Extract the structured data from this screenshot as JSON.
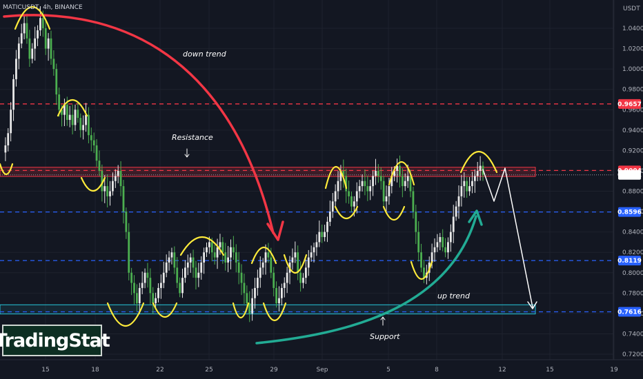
{
  "symbol_label": "MATICUSDT, 4h, BINANCE",
  "currency_label": "USDT",
  "watermark": "TradingStat",
  "colors": {
    "background": "#131722",
    "up_candle": "#e8e8e8",
    "down_candle": "#4caf50",
    "resistance_red": "#f23645",
    "support_cyan": "#26c6da",
    "blue_dash": "#2962ff",
    "curve_red": "#f23645",
    "curve_green": "#22ab94",
    "yellow_marks": "#ffeb3b"
  },
  "annotations": {
    "down_trend": "down trend",
    "up_trend": "up trend",
    "resistance": "Resistance",
    "support": "Support"
  },
  "chart_data": {
    "type": "candlestick",
    "ylim": [
      0.711,
      1.058
    ],
    "y_ticks": [
      1.04,
      1.02,
      1.0,
      0.98,
      0.96,
      0.94,
      0.92,
      0.9,
      0.88,
      0.86,
      0.84,
      0.82,
      0.8,
      0.78,
      0.76,
      0.74,
      0.72
    ],
    "y_tick_labels": [
      "1.0400",
      "1.0200",
      "1.0000",
      "0.9800",
      "0.9600",
      "0.9400",
      "0.9200",
      "0.9000",
      "0.8800",
      "0.8600",
      "0.8400",
      "0.8200",
      "0.8000",
      "0.7800",
      "0.7600",
      "0.7400",
      "0.7200"
    ],
    "x_ticks": [
      "15",
      "18",
      "22",
      "25",
      "29",
      "Sep",
      "5",
      "8",
      "12",
      "15",
      "19"
    ],
    "levels": [
      {
        "name": "resistance-upper",
        "value": 0.9657,
        "label": "0.9657",
        "style": "dashed",
        "color": "#f23645"
      },
      {
        "name": "resistance-zone-top",
        "value": 0.9004,
        "label": "0.9004",
        "style": "dashed",
        "color": "#f23645"
      },
      {
        "name": "current-price",
        "value": 0.8961,
        "label": "0.8961",
        "style": "dotted",
        "color": "#787b86"
      },
      {
        "name": "level-blue-1",
        "value": 0.8596,
        "label": "0.8596",
        "style": "dashed",
        "color": "#2962ff"
      },
      {
        "name": "level-blue-2",
        "value": 0.8119,
        "label": "0.8119",
        "style": "dashed",
        "color": "#2962ff"
      },
      {
        "name": "support",
        "value": 0.7616,
        "label": "0.7616",
        "style": "dashed",
        "color": "#2962ff"
      }
    ],
    "resistance_zone": [
      0.8945,
      0.9035
    ],
    "support_zone": [
      0.7595,
      0.7685
    ],
    "path_points": [
      0.918,
      0.925,
      0.937,
      0.96,
      0.99,
      1.01,
      1.025,
      1.035,
      1.045,
      1.03,
      1.01,
      1.02,
      1.03,
      1.038,
      1.05,
      1.04,
      1.02,
      1.03,
      1.01,
      1.0,
      0.975,
      0.96,
      0.955,
      0.965,
      0.95,
      0.955,
      0.945,
      0.96,
      0.952,
      0.94,
      0.945,
      0.955,
      0.935,
      0.93,
      0.925,
      0.91,
      0.9,
      0.88,
      0.885,
      0.875,
      0.88,
      0.89,
      0.895,
      0.9,
      0.885,
      0.86,
      0.84,
      0.8,
      0.79,
      0.78,
      0.77,
      0.785,
      0.79,
      0.8,
      0.795,
      0.78,
      0.77,
      0.775,
      0.785,
      0.79,
      0.8,
      0.81,
      0.815,
      0.82,
      0.805,
      0.79,
      0.78,
      0.795,
      0.805,
      0.81,
      0.815,
      0.805,
      0.795,
      0.8,
      0.81,
      0.82,
      0.825,
      0.83,
      0.82,
      0.815,
      0.825,
      0.83,
      0.82,
      0.81,
      0.815,
      0.825,
      0.82,
      0.81,
      0.8,
      0.79,
      0.78,
      0.77,
      0.76,
      0.775,
      0.785,
      0.795,
      0.805,
      0.81,
      0.82,
      0.815,
      0.8,
      0.785,
      0.77,
      0.775,
      0.785,
      0.79,
      0.8,
      0.81,
      0.815,
      0.82,
      0.8,
      0.79,
      0.795,
      0.805,
      0.815,
      0.82,
      0.825,
      0.83,
      0.84,
      0.835,
      0.84,
      0.85,
      0.86,
      0.87,
      0.88,
      0.89,
      0.9,
      0.895,
      0.88,
      0.875,
      0.865,
      0.87,
      0.88,
      0.885,
      0.89,
      0.885,
      0.88,
      0.885,
      0.895,
      0.9,
      0.895,
      0.89,
      0.87,
      0.875,
      0.885,
      0.895,
      0.9,
      0.905,
      0.895,
      0.885,
      0.89,
      0.895,
      0.88,
      0.86,
      0.84,
      0.82,
      0.805,
      0.795,
      0.8,
      0.81,
      0.82,
      0.825,
      0.83,
      0.835,
      0.825,
      0.82,
      0.83,
      0.84,
      0.855,
      0.865,
      0.875,
      0.885,
      0.89,
      0.88,
      0.885,
      0.89,
      0.895,
      0.9,
      0.905,
      0.8961
    ]
  }
}
